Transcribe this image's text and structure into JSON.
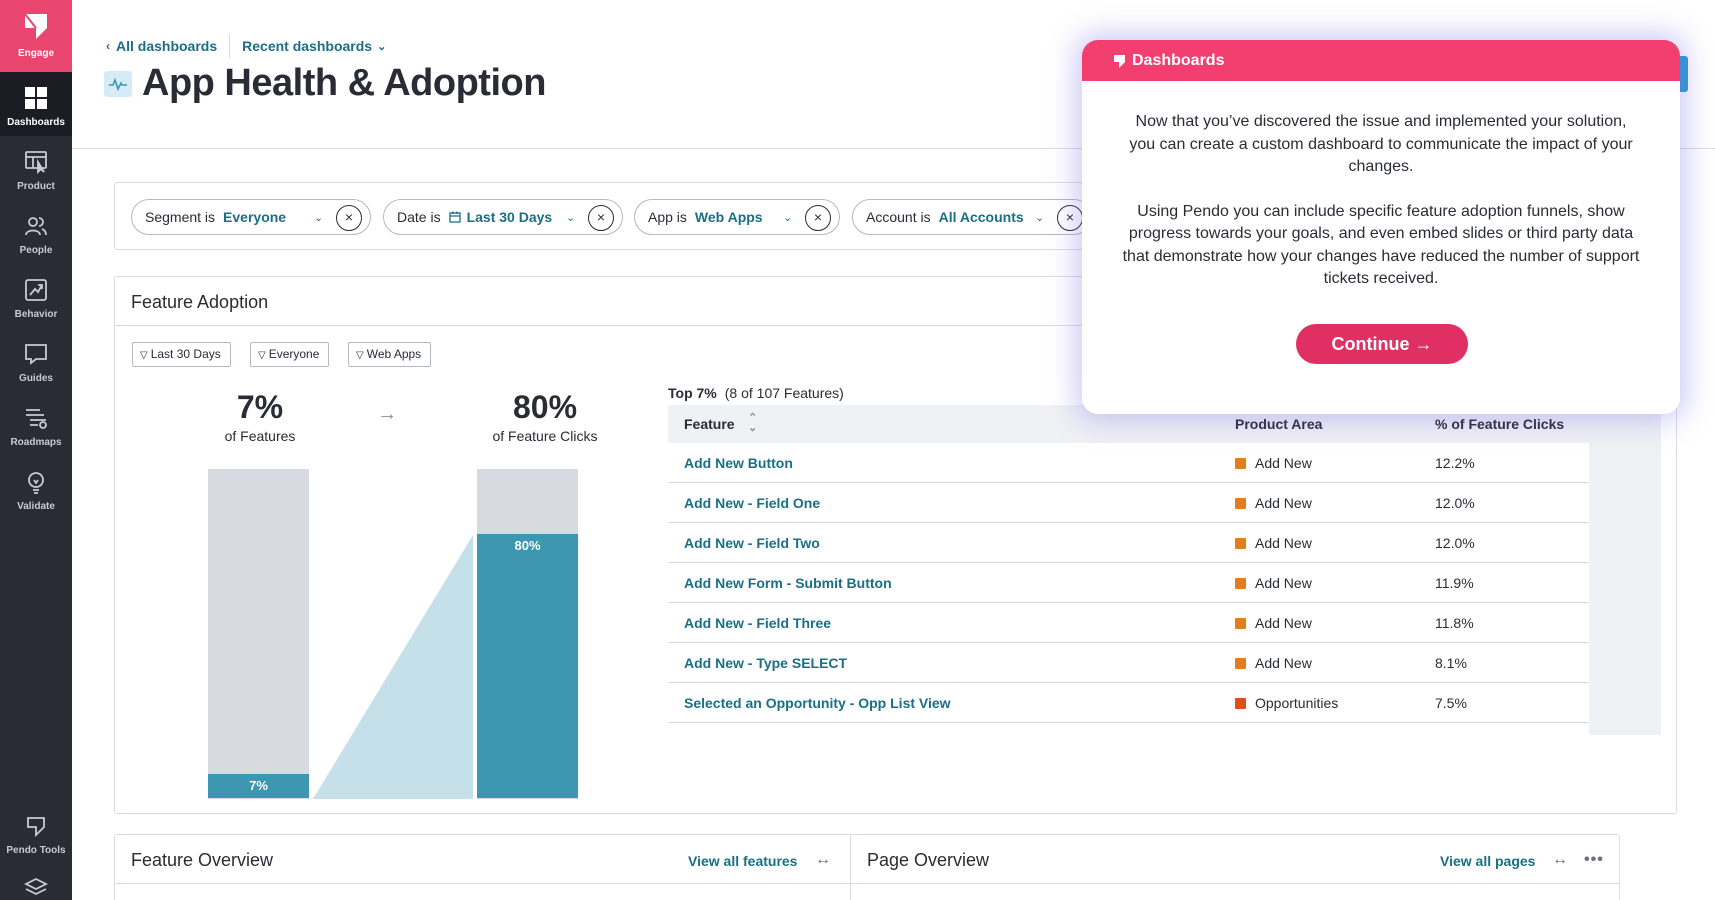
{
  "sidebar": {
    "engage": "Engage",
    "items": [
      {
        "label": "Dashboards",
        "icon": "dashboards-icon",
        "active": true
      },
      {
        "label": "Product",
        "icon": "product-icon"
      },
      {
        "label": "People",
        "icon": "people-icon"
      },
      {
        "label": "Behavior",
        "icon": "behavior-icon"
      },
      {
        "label": "Guides",
        "icon": "guides-icon"
      },
      {
        "label": "Roadmaps",
        "icon": "roadmaps-icon"
      },
      {
        "label": "Validate",
        "icon": "validate-icon"
      }
    ],
    "bottom": {
      "label": "Pendo Tools",
      "icon": "pendo-tools-icon"
    }
  },
  "header": {
    "back_link": "All dashboards",
    "recent": "Recent dashboards",
    "title": "App Health & Adoption"
  },
  "filters": [
    {
      "key": "Segment is",
      "value": "Everyone"
    },
    {
      "key": "Date is",
      "value": "Last 30 Days"
    },
    {
      "key": "App is",
      "value": "Web Apps"
    },
    {
      "key": "Account is",
      "value": "All Accounts"
    }
  ],
  "feature_adoption": {
    "title": "Feature Adoption",
    "chips": [
      "Last 30 Days",
      "Everyone",
      "Web Apps"
    ],
    "left_value": "7%",
    "left_sub": "of Features",
    "right_value": "80%",
    "right_sub": "of Feature Clicks",
    "left_bar_label": "7%",
    "right_bar_label": "80%",
    "left_bar_fraction": 0.07,
    "right_bar_fraction": 0.8,
    "top_label": "Top 7%",
    "top_count": "(8 of 107 Features)",
    "columns": [
      "Feature",
      "Product Area",
      "% of Feature Clicks"
    ],
    "rows": [
      {
        "feature": "Add New Button",
        "area": "Add New",
        "color": "#e07d1f",
        "pct": "12.2%"
      },
      {
        "feature": "Add New - Field One",
        "area": "Add New",
        "color": "#e07d1f",
        "pct": "12.0%"
      },
      {
        "feature": "Add New - Field Two",
        "area": "Add New",
        "color": "#e07d1f",
        "pct": "12.0%"
      },
      {
        "feature": "Add New Form - Submit Button",
        "area": "Add New",
        "color": "#e07d1f",
        "pct": "11.9%"
      },
      {
        "feature": "Add New - Field Three",
        "area": "Add New",
        "color": "#e07d1f",
        "pct": "11.8%"
      },
      {
        "feature": "Add New - Type SELECT",
        "area": "Add New",
        "color": "#e07d1f",
        "pct": "8.1%"
      },
      {
        "feature": "Selected an Opportunity - Opp List View",
        "area": "Opportunities",
        "color": "#e04d1f",
        "pct": "7.5%"
      }
    ]
  },
  "feature_overview": {
    "title": "Feature Overview",
    "link": "View all features"
  },
  "page_overview": {
    "title": "Page Overview",
    "link": "View all pages"
  },
  "guide": {
    "title": "Dashboards",
    "p1": "Now that you’ve discovered the issue and implemented your solution, you can create a custom dashboard to communicate the impact of your changes.",
    "p2": "Using Pendo you can include specific feature adoption funnels, show progress towards your goals, and even embed slides or third party data that demonstrate how your changes have reduced the number of support tickets received.",
    "button": "Continue →"
  },
  "colors": {
    "accent": "#1a6f84",
    "brand": "#e8456f",
    "bar": "#3d97b1",
    "guide_header": "#f23f6f"
  }
}
